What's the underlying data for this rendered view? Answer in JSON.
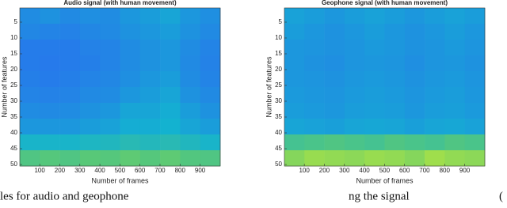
{
  "chart_data": [
    {
      "type": "heatmap",
      "title": "Audio signal (with human movement)",
      "x_label": "Number of frames",
      "y_label": "Number of features",
      "xbins": [
        0.5,
        100.5,
        200.5,
        300.5,
        400.5,
        500.5,
        600.5,
        700.5,
        800.5,
        900.5,
        1000.5
      ],
      "ybins": [
        0.5,
        5.5,
        10.5,
        15.5,
        20.5,
        25.5,
        30.5,
        35.5,
        40.5,
        45.5,
        50.5
      ],
      "xlim": [
        0.5,
        1000.5
      ],
      "ylim": [
        0.5,
        50.5
      ],
      "xticks": [
        100,
        200,
        300,
        400,
        500,
        600,
        700,
        800,
        900
      ],
      "yticks": [
        5,
        10,
        15,
        20,
        25,
        30,
        35,
        40,
        45,
        50
      ],
      "clim": [
        0,
        1
      ],
      "colormap": [
        "#3e26a8",
        "#2a6ff0",
        "#13b2d0",
        "#58c878",
        "#f9fb15"
      ],
      "values": [
        [
          0.36,
          0.38,
          0.35,
          0.37,
          0.36,
          0.4,
          0.42,
          0.45,
          0.4,
          0.37
        ],
        [
          0.34,
          0.33,
          0.32,
          0.34,
          0.35,
          0.38,
          0.4,
          0.42,
          0.38,
          0.35
        ],
        [
          0.3,
          0.3,
          0.3,
          0.32,
          0.33,
          0.36,
          0.38,
          0.4,
          0.36,
          0.33
        ],
        [
          0.3,
          0.29,
          0.3,
          0.31,
          0.33,
          0.36,
          0.38,
          0.4,
          0.35,
          0.32
        ],
        [
          0.31,
          0.3,
          0.31,
          0.33,
          0.34,
          0.37,
          0.4,
          0.42,
          0.36,
          0.33
        ],
        [
          0.33,
          0.32,
          0.33,
          0.35,
          0.36,
          0.4,
          0.42,
          0.45,
          0.38,
          0.35
        ],
        [
          0.36,
          0.35,
          0.36,
          0.38,
          0.4,
          0.45,
          0.45,
          0.48,
          0.42,
          0.38
        ],
        [
          0.4,
          0.4,
          0.4,
          0.42,
          0.44,
          0.48,
          0.48,
          0.5,
          0.45,
          0.42
        ],
        [
          0.52,
          0.52,
          0.52,
          0.54,
          0.55,
          0.58,
          0.56,
          0.58,
          0.55,
          0.52
        ],
        [
          0.72,
          0.74,
          0.72,
          0.75,
          0.74,
          0.76,
          0.74,
          0.76,
          0.73,
          0.72
        ]
      ]
    },
    {
      "type": "heatmap",
      "title": "Geophone signal (with human movement)",
      "x_label": "Number of frames",
      "y_label": "Number of features",
      "xbins": [
        0.5,
        100.5,
        200.5,
        300.5,
        400.5,
        500.5,
        600.5,
        700.5,
        800.5,
        900.5,
        1000.5
      ],
      "ybins": [
        0.5,
        5.5,
        10.5,
        15.5,
        20.5,
        25.5,
        30.5,
        35.5,
        40.5,
        45.5,
        50.5
      ],
      "xlim": [
        0.5,
        1000.5
      ],
      "ylim": [
        0.5,
        50.5
      ],
      "xticks": [
        100,
        200,
        300,
        400,
        500,
        600,
        700,
        800,
        900
      ],
      "yticks": [
        5,
        10,
        15,
        20,
        25,
        30,
        35,
        40,
        45,
        50
      ],
      "clim": [
        0,
        1
      ],
      "colormap": [
        "#3e26a8",
        "#2a6ff0",
        "#13b2d0",
        "#58c878",
        "#f9fb15"
      ],
      "values": [
        [
          0.44,
          0.42,
          0.4,
          0.42,
          0.44,
          0.42,
          0.4,
          0.42,
          0.44,
          0.42
        ],
        [
          0.42,
          0.4,
          0.38,
          0.4,
          0.42,
          0.4,
          0.38,
          0.4,
          0.42,
          0.4
        ],
        [
          0.4,
          0.39,
          0.38,
          0.39,
          0.41,
          0.4,
          0.38,
          0.39,
          0.41,
          0.39
        ],
        [
          0.4,
          0.38,
          0.37,
          0.39,
          0.4,
          0.39,
          0.37,
          0.39,
          0.4,
          0.38
        ],
        [
          0.4,
          0.39,
          0.38,
          0.4,
          0.41,
          0.4,
          0.38,
          0.4,
          0.41,
          0.39
        ],
        [
          0.41,
          0.4,
          0.39,
          0.41,
          0.42,
          0.41,
          0.39,
          0.41,
          0.42,
          0.4
        ],
        [
          0.42,
          0.41,
          0.4,
          0.42,
          0.43,
          0.42,
          0.4,
          0.42,
          0.43,
          0.41
        ],
        [
          0.45,
          0.44,
          0.43,
          0.45,
          0.46,
          0.45,
          0.43,
          0.45,
          0.46,
          0.44
        ],
        [
          0.68,
          0.7,
          0.72,
          0.7,
          0.68,
          0.72,
          0.7,
          0.68,
          0.72,
          0.7
        ],
        [
          0.82,
          0.85,
          0.84,
          0.83,
          0.85,
          0.84,
          0.82,
          0.86,
          0.84,
          0.83
        ]
      ]
    }
  ],
  "caption_fragments": [
    "les for audio and geophone",
    "ng the signal",
    "("
  ]
}
